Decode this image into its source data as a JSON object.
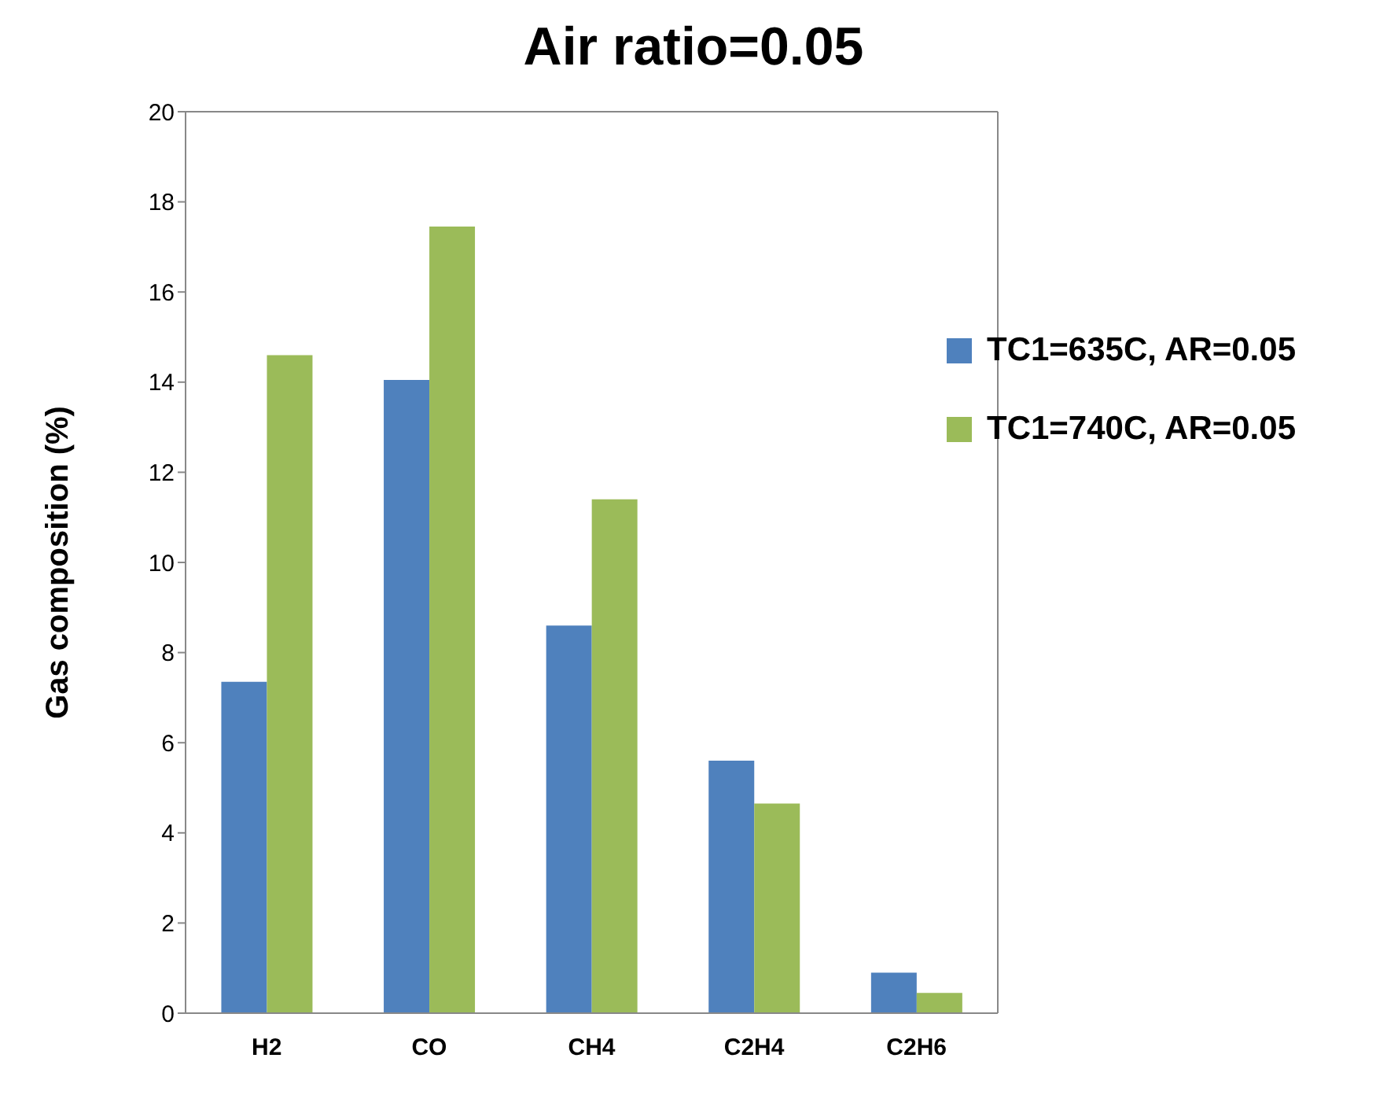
{
  "chart_data": {
    "type": "bar",
    "title": "Air ratio=0.05",
    "ylabel": "Gas composition (%)",
    "categories": [
      "H2",
      "CO",
      "CH4",
      "C2H4",
      "C2H6"
    ],
    "series": [
      {
        "name": "TC1=635C, AR=0.05",
        "color": "#4f81bd",
        "values": [
          7.35,
          14.05,
          8.6,
          5.6,
          0.9
        ]
      },
      {
        "name": "TC1=740C, AR=0.05",
        "color": "#9bbb59",
        "values": [
          14.6,
          17.45,
          11.4,
          4.65,
          0.45
        ]
      }
    ],
    "ylim": [
      0,
      20
    ],
    "yticks": [
      0,
      2,
      4,
      6,
      8,
      10,
      12,
      14,
      16,
      18,
      20
    ],
    "grid": false,
    "legend": "top right"
  }
}
